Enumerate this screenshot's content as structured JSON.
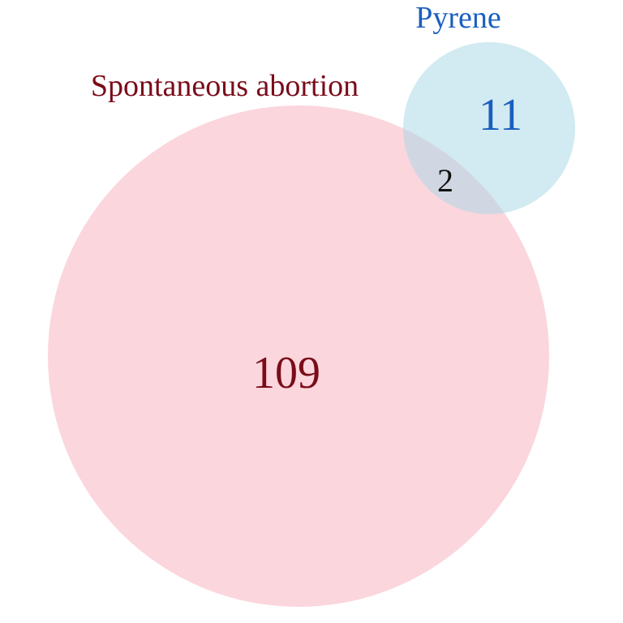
{
  "sets": [
    {
      "name": "Spontaneous abortion",
      "only_count": "109",
      "fill": "#f9c0cb",
      "label_color": "#7a0c1a"
    },
    {
      "name": "Pyrene",
      "only_count": "11",
      "fill": "#add8e6",
      "label_color": "#1a5fbf"
    }
  ],
  "intersection": {
    "count": "2",
    "color": "#111111"
  }
}
